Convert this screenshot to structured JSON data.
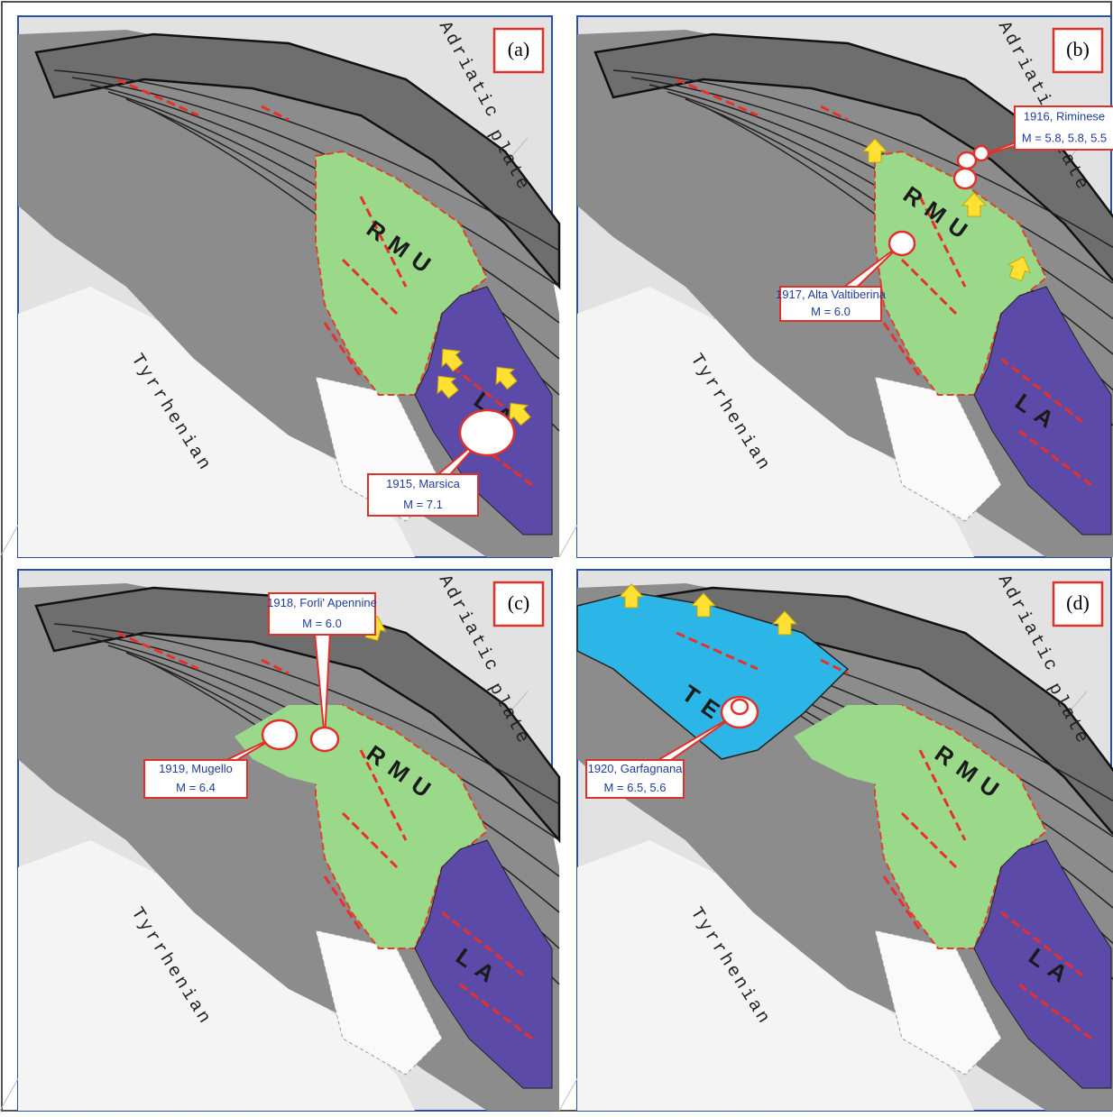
{
  "panels": [
    {
      "label": "(a)",
      "adriatic": "Adriatic",
      "plate": "plate",
      "tyrrhenian": "Tyrrhenian",
      "regions": [
        "RMU",
        "LA"
      ],
      "events": [
        {
          "lines": [
            "1915, Marsica",
            "M = 7.1"
          ]
        }
      ]
    },
    {
      "label": "(b)",
      "adriatic": "Adriatic",
      "plate": "plate",
      "tyrrhenian": "Tyrrhenian",
      "regions": [
        "RMU",
        "LA"
      ],
      "events": [
        {
          "lines": [
            "1916, Riminese",
            "M = 5.8, 5.8, 5.5"
          ]
        },
        {
          "lines": [
            "1917, Alta Valtiberina",
            "M = 6.0"
          ]
        }
      ]
    },
    {
      "label": "(c)",
      "adriatic": "Adriatic",
      "plate": "plate",
      "tyrrhenian": "Tyrrhenian",
      "regions": [
        "RMU",
        "LA"
      ],
      "events": [
        {
          "lines": [
            "1918, Forli' Apennine",
            "M = 6.0"
          ]
        },
        {
          "lines": [
            "1919, Mugello",
            "M = 6.4"
          ]
        }
      ]
    },
    {
      "label": "(d)",
      "adriatic": "Adriatic",
      "plate": "plate",
      "tyrrhenian": "Tyrrhenian",
      "regions": [
        "TE",
        "RMU",
        "LA"
      ],
      "events": [
        {
          "lines": [
            "1920, Garfagnana",
            "M = 6.5, 5.6"
          ]
        }
      ]
    }
  ]
}
